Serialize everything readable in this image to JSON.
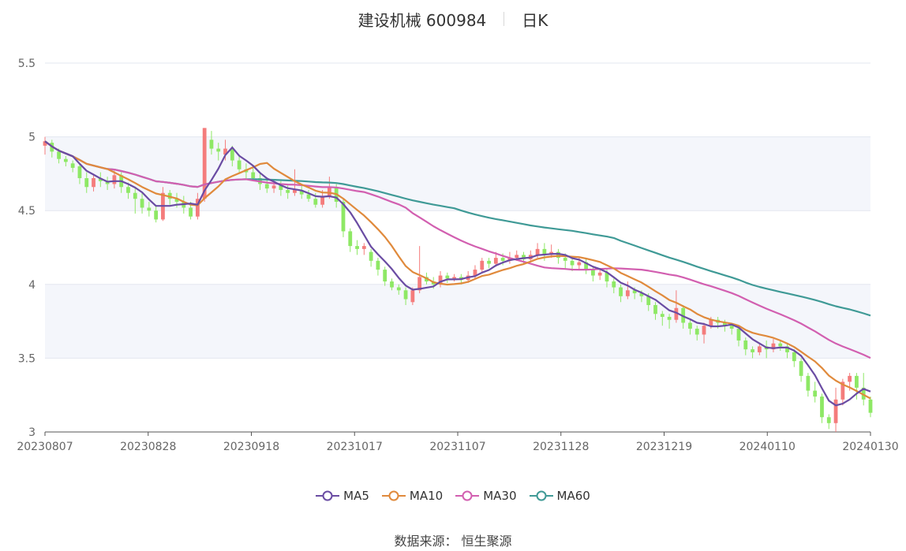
{
  "header": {
    "stock_name": "建设机械 600984",
    "period": "日K"
  },
  "footer": {
    "source": "数据来源： 恒生聚源"
  },
  "colors": {
    "up": "#f47c7c",
    "down": "#8ee865",
    "MA5": "#6a4ca3",
    "MA10": "#e08a3c",
    "MA30": "#d25fb0",
    "MA60": "#3f9a96"
  },
  "chart_data": {
    "type": "candlestick",
    "title": "建设机械 600984",
    "subtitle": "日K",
    "x_tick_labels": [
      "20230807",
      "20230828",
      "20230918",
      "20231017",
      "20231107",
      "20231128",
      "20231219",
      "20240110",
      "20240130"
    ],
    "y_ticks": [
      "3",
      "3.5",
      "4",
      "4.5",
      "5",
      "5.5"
    ],
    "ylim": [
      3,
      5.5
    ],
    "grid": true,
    "legend_position": "bottom",
    "legend": [
      "MA5",
      "MA10",
      "MA30",
      "MA60"
    ],
    "candles": [
      [
        4.94,
        4.97,
        5.0,
        4.88
      ],
      [
        4.96,
        4.9,
        4.98,
        4.86
      ],
      [
        4.9,
        4.85,
        4.92,
        4.82
      ],
      [
        4.85,
        4.83,
        4.87,
        4.8
      ],
      [
        4.82,
        4.79,
        4.84,
        4.76
      ],
      [
        4.8,
        4.72,
        4.82,
        4.68
      ],
      [
        4.72,
        4.66,
        4.76,
        4.62
      ],
      [
        4.66,
        4.72,
        4.75,
        4.63
      ],
      [
        4.72,
        4.7,
        4.76,
        4.66
      ],
      [
        4.7,
        4.68,
        4.73,
        4.64
      ],
      [
        4.68,
        4.74,
        4.77,
        4.65
      ],
      [
        4.74,
        4.66,
        4.76,
        4.62
      ],
      [
        4.66,
        4.62,
        4.69,
        4.58
      ],
      [
        4.62,
        4.58,
        4.65,
        4.48
      ],
      [
        4.58,
        4.52,
        4.62,
        4.48
      ],
      [
        4.52,
        4.5,
        4.56,
        4.46
      ],
      [
        4.5,
        4.44,
        4.53,
        4.42
      ],
      [
        4.44,
        4.62,
        4.66,
        4.43
      ],
      [
        4.62,
        4.58,
        4.64,
        4.54
      ],
      [
        4.58,
        4.56,
        4.62,
        4.52
      ],
      [
        4.56,
        4.52,
        4.6,
        4.48
      ],
      [
        4.52,
        4.46,
        4.56,
        4.44
      ],
      [
        4.46,
        4.58,
        4.62,
        4.44
      ],
      [
        4.58,
        5.06,
        5.06,
        4.56
      ],
      [
        4.98,
        4.92,
        5.04,
        4.88
      ],
      [
        4.92,
        4.9,
        4.96,
        4.84
      ],
      [
        4.88,
        4.92,
        4.98,
        4.84
      ],
      [
        4.92,
        4.84,
        4.94,
        4.8
      ],
      [
        4.84,
        4.78,
        4.88,
        4.76
      ],
      [
        4.78,
        4.76,
        4.82,
        4.72
      ],
      [
        4.76,
        4.72,
        4.8,
        4.7
      ],
      [
        4.72,
        4.68,
        4.76,
        4.64
      ],
      [
        4.68,
        4.65,
        4.71,
        4.62
      ],
      [
        4.65,
        4.67,
        4.7,
        4.62
      ],
      [
        4.67,
        4.64,
        4.7,
        4.6
      ],
      [
        4.64,
        4.62,
        4.67,
        4.58
      ],
      [
        4.62,
        4.64,
        4.78,
        4.6
      ],
      [
        4.64,
        4.61,
        4.67,
        4.58
      ],
      [
        4.61,
        4.58,
        4.64,
        4.56
      ],
      [
        4.58,
        4.54,
        4.62,
        4.52
      ],
      [
        4.54,
        4.6,
        4.64,
        4.52
      ],
      [
        4.6,
        4.66,
        4.73,
        4.58
      ],
      [
        4.66,
        4.56,
        4.68,
        4.52
      ],
      [
        4.56,
        4.36,
        4.58,
        4.32
      ],
      [
        4.36,
        4.26,
        4.38,
        4.22
      ],
      [
        4.26,
        4.24,
        4.3,
        4.2
      ],
      [
        4.24,
        4.26,
        4.28,
        4.2
      ],
      [
        4.22,
        4.16,
        4.24,
        4.12
      ],
      [
        4.16,
        4.1,
        4.18,
        4.06
      ],
      [
        4.1,
        4.02,
        4.12,
        3.99
      ],
      [
        4.02,
        3.98,
        4.04,
        3.96
      ],
      [
        3.98,
        3.96,
        4.0,
        3.93
      ],
      [
        3.96,
        3.9,
        3.98,
        3.86
      ],
      [
        3.88,
        3.96,
        3.98,
        3.86
      ],
      [
        3.96,
        4.05,
        4.26,
        3.94
      ],
      [
        4.05,
        4.02,
        4.08,
        4.0
      ],
      [
        4.02,
        4.0,
        4.05,
        3.97
      ],
      [
        4.0,
        4.06,
        4.09,
        3.98
      ],
      [
        4.06,
        4.04,
        4.08,
        4.01
      ],
      [
        4.04,
        4.05,
        4.07,
        4.02
      ],
      [
        4.05,
        4.03,
        4.07,
        4.0
      ],
      [
        4.03,
        4.06,
        4.09,
        4.01
      ],
      [
        4.06,
        4.1,
        4.13,
        4.04
      ],
      [
        4.1,
        4.16,
        4.18,
        4.08
      ],
      [
        4.16,
        4.14,
        4.18,
        4.11
      ],
      [
        4.14,
        4.18,
        4.22,
        4.12
      ],
      [
        4.18,
        4.16,
        4.21,
        4.13
      ],
      [
        4.16,
        4.18,
        4.22,
        4.14
      ],
      [
        4.18,
        4.2,
        4.23,
        4.16
      ],
      [
        4.2,
        4.17,
        4.22,
        4.14
      ],
      [
        4.17,
        4.2,
        4.23,
        4.15
      ],
      [
        4.2,
        4.24,
        4.28,
        4.18
      ],
      [
        4.24,
        4.2,
        4.28,
        4.16
      ],
      [
        4.2,
        4.22,
        4.27,
        4.18
      ],
      [
        4.22,
        4.18,
        4.24,
        4.14
      ],
      [
        4.18,
        4.16,
        4.21,
        4.1
      ],
      [
        4.16,
        4.13,
        4.19,
        4.09
      ],
      [
        4.13,
        4.15,
        4.18,
        4.1
      ],
      [
        4.15,
        4.1,
        4.17,
        4.07
      ],
      [
        4.1,
        4.06,
        4.12,
        4.02
      ],
      [
        4.06,
        4.08,
        4.11,
        4.03
      ],
      [
        4.08,
        4.02,
        4.1,
        3.98
      ],
      [
        4.02,
        3.98,
        4.04,
        3.94
      ],
      [
        3.98,
        3.92,
        4.0,
        3.88
      ],
      [
        3.92,
        3.96,
        4.02,
        3.9
      ],
      [
        3.96,
        3.94,
        3.98,
        3.9
      ],
      [
        3.94,
        3.92,
        3.96,
        3.88
      ],
      [
        3.92,
        3.86,
        3.94,
        3.82
      ],
      [
        3.86,
        3.8,
        3.88,
        3.76
      ],
      [
        3.8,
        3.78,
        3.82,
        3.72
      ],
      [
        3.78,
        3.76,
        3.8,
        3.7
      ],
      [
        3.76,
        3.84,
        3.96,
        3.74
      ],
      [
        3.84,
        3.74,
        3.86,
        3.7
      ],
      [
        3.74,
        3.7,
        3.76,
        3.66
      ],
      [
        3.7,
        3.66,
        3.72,
        3.62
      ],
      [
        3.66,
        3.72,
        3.74,
        3.6
      ],
      [
        3.72,
        3.76,
        3.78,
        3.7
      ],
      [
        3.76,
        3.74,
        3.78,
        3.7
      ],
      [
        3.74,
        3.72,
        3.76,
        3.68
      ],
      [
        3.72,
        3.7,
        3.74,
        3.66
      ],
      [
        3.7,
        3.62,
        3.72,
        3.58
      ],
      [
        3.62,
        3.56,
        3.64,
        3.52
      ],
      [
        3.56,
        3.54,
        3.58,
        3.5
      ],
      [
        3.54,
        3.58,
        3.6,
        3.52
      ],
      [
        3.58,
        3.56,
        3.62,
        3.5
      ],
      [
        3.56,
        3.6,
        3.63,
        3.54
      ],
      [
        3.6,
        3.58,
        3.62,
        3.55
      ],
      [
        3.58,
        3.54,
        3.6,
        3.5
      ],
      [
        3.54,
        3.48,
        3.56,
        3.44
      ],
      [
        3.48,
        3.38,
        3.5,
        3.34
      ],
      [
        3.38,
        3.28,
        3.4,
        3.24
      ],
      [
        3.28,
        3.24,
        3.34,
        3.2
      ],
      [
        3.24,
        3.1,
        3.26,
        3.06
      ],
      [
        3.1,
        3.06,
        3.12,
        3.02
      ],
      [
        3.06,
        3.22,
        3.3,
        3.0
      ],
      [
        3.22,
        3.34,
        3.36,
        3.18
      ],
      [
        3.34,
        3.38,
        3.4,
        3.28
      ],
      [
        3.38,
        3.3,
        3.4,
        3.22
      ],
      [
        3.3,
        3.22,
        3.4,
        3.18
      ],
      [
        3.22,
        3.13,
        3.24,
        3.1
      ]
    ]
  }
}
